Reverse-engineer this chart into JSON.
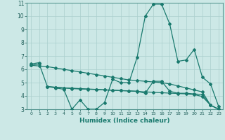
{
  "xlabel": "Humidex (Indice chaleur)",
  "ylabel": "",
  "background_color": "#cce8e6",
  "line_color": "#1a7a6e",
  "grid_color": "#aacfcd",
  "xlim": [
    -0.5,
    23.5
  ],
  "ylim": [
    3,
    11
  ],
  "xticks": [
    0,
    1,
    2,
    3,
    4,
    5,
    6,
    7,
    8,
    9,
    10,
    11,
    12,
    13,
    14,
    15,
    16,
    17,
    18,
    19,
    20,
    21,
    22,
    23
  ],
  "yticks": [
    3,
    4,
    5,
    6,
    7,
    8,
    9,
    10,
    11
  ],
  "lines": [
    {
      "x": [
        0,
        1
      ],
      "y": [
        6.4,
        6.5
      ]
    },
    {
      "x": [
        0,
        1,
        2,
        3,
        4,
        5,
        6,
        7,
        8,
        9,
        10,
        11,
        12,
        13,
        14,
        15,
        16,
        17,
        18,
        19,
        20,
        21,
        22,
        23
      ],
      "y": [
        6.3,
        6.4,
        4.7,
        4.6,
        4.5,
        3.0,
        3.7,
        3.0,
        3.0,
        3.5,
        5.25,
        5.0,
        5.0,
        6.9,
        10.0,
        10.9,
        10.9,
        9.4,
        6.6,
        6.7,
        7.5,
        5.4,
        4.9,
        3.2
      ]
    },
    {
      "x": [
        2,
        3,
        4,
        5,
        6,
        7,
        8,
        9,
        10,
        11,
        12,
        13,
        14,
        15,
        16,
        17,
        18,
        19,
        20,
        21,
        22,
        23
      ],
      "y": [
        4.7,
        4.65,
        4.6,
        4.55,
        4.52,
        4.5,
        4.47,
        4.45,
        4.42,
        4.4,
        4.38,
        4.35,
        4.2,
        5.1,
        5.1,
        4.35,
        4.2,
        4.2,
        4.15,
        4.1,
        3.3,
        3.0
      ]
    },
    {
      "x": [
        0,
        1,
        2,
        3,
        4,
        5,
        6,
        7,
        8,
        9,
        10,
        11,
        12,
        13,
        14,
        15,
        16,
        17,
        18,
        19,
        20,
        21,
        22,
        23
      ],
      "y": [
        6.3,
        6.25,
        6.2,
        6.1,
        6.0,
        5.9,
        5.8,
        5.7,
        5.6,
        5.5,
        5.4,
        5.3,
        5.2,
        5.15,
        5.1,
        5.05,
        5.0,
        4.9,
        4.75,
        4.6,
        4.45,
        4.3,
        3.3,
        3.0
      ]
    },
    {
      "x": [
        2,
        3,
        4,
        5,
        6,
        7,
        8,
        9,
        10,
        11,
        12,
        13,
        14,
        15,
        16,
        17,
        18,
        19,
        20,
        21,
        22,
        23
      ],
      "y": [
        4.7,
        4.65,
        4.6,
        4.58,
        4.55,
        4.52,
        4.49,
        4.46,
        4.43,
        4.4,
        4.37,
        4.34,
        4.3,
        4.27,
        4.24,
        4.21,
        4.18,
        4.15,
        4.1,
        3.95,
        3.3,
        3.0
      ]
    }
  ]
}
